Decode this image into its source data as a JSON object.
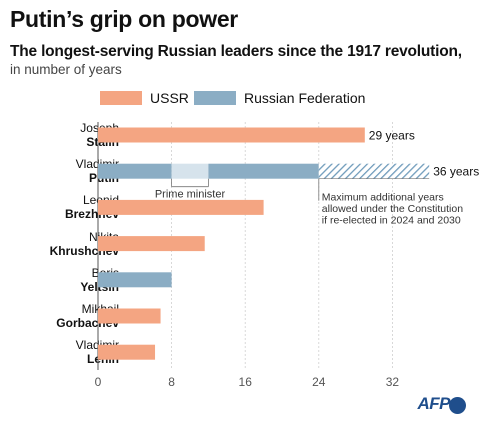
{
  "title": "Putin’s grip on power",
  "subtitle": "The longest-serving Russian leaders since the 1917 revolution,",
  "subtitle_unit": "in number of years",
  "legend": [
    {
      "label": "USSR",
      "color": "#f4a582"
    },
    {
      "label": "Russian Federation",
      "color": "#8badc4"
    }
  ],
  "colors": {
    "ussr": "#f4a582",
    "federation": "#8badc4",
    "pm": "#d6e3ec",
    "hatch": "#6f9bbb"
  },
  "chart_data": {
    "type": "bar",
    "orientation": "horizontal",
    "xlim": [
      0,
      36
    ],
    "ticks": [
      "0",
      "8",
      "16",
      "24",
      "32"
    ],
    "tick_values": [
      0,
      8,
      16,
      24,
      32
    ],
    "grid": true,
    "leaders": [
      {
        "first": "Joseph",
        "last": "Stalin",
        "years": 29,
        "label": "29 years",
        "segments": [
          {
            "start": 0,
            "end": 29,
            "kind": "ussr"
          }
        ]
      },
      {
        "first": "Vladimir",
        "last": "Putin",
        "years": 36,
        "label": "36 years",
        "segments": [
          {
            "start": 0,
            "end": 8,
            "kind": "federation"
          },
          {
            "start": 8,
            "end": 12,
            "kind": "pm"
          },
          {
            "start": 12,
            "end": 24,
            "kind": "federation"
          },
          {
            "start": 24,
            "end": 36,
            "kind": "hatch"
          }
        ]
      },
      {
        "first": "Leonid",
        "last": "Brezhnev",
        "years": 18,
        "segments": [
          {
            "start": 0,
            "end": 18,
            "kind": "ussr"
          }
        ]
      },
      {
        "first": "Nikita",
        "last": "Khrushchev",
        "years": 11.6,
        "segments": [
          {
            "start": 0,
            "end": 11.6,
            "kind": "ussr"
          }
        ]
      },
      {
        "first": "Boris",
        "last": "Yeltsin",
        "years": 8,
        "segments": [
          {
            "start": 0,
            "end": 8,
            "kind": "federation"
          }
        ]
      },
      {
        "first": "Mikhail",
        "last": "Gorbachev",
        "years": 6.8,
        "segments": [
          {
            "start": 0,
            "end": 6.8,
            "kind": "ussr"
          }
        ]
      },
      {
        "first": "Vladimir",
        "last": "Lenin",
        "years": 6.2,
        "segments": [
          {
            "start": 0,
            "end": 6.2,
            "kind": "ussr"
          }
        ]
      }
    ],
    "annotations": {
      "prime_minister": "Prime minister",
      "constitution": [
        "Maximum additional years",
        "allowed under the Constitution",
        "if re-elected in 2024 and 2030"
      ]
    }
  },
  "logo": "AFP"
}
